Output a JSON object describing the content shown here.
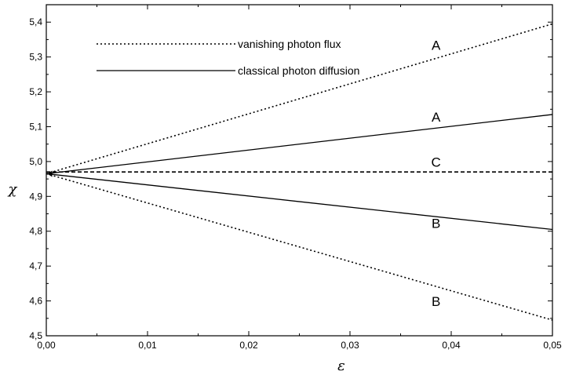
{
  "chart_data": {
    "type": "line",
    "xlabel": "ε",
    "ylabel": "χ",
    "xlim": [
      0.0,
      0.05
    ],
    "ylim": [
      4.5,
      5.45
    ],
    "x_ticks": [
      0.0,
      0.01,
      0.02,
      0.03,
      0.04,
      0.05
    ],
    "x_tick_labels": [
      "0,00",
      "0,01",
      "0,02",
      "0,03",
      "0,04",
      "0,05"
    ],
    "y_ticks": [
      4.5,
      4.6,
      4.7,
      4.8,
      4.9,
      5.0,
      5.1,
      5.2,
      5.3,
      5.4
    ],
    "y_tick_labels": [
      "4,5",
      "4,6",
      "4,7",
      "4,8",
      "4,9",
      "5,0",
      "5,1",
      "5,2",
      "5,3",
      "5,4"
    ],
    "grid": false,
    "legend": {
      "placement": "top-left",
      "entries": [
        {
          "label": "vanishing photon flux",
          "style": "dotted"
        },
        {
          "label": "classical photon diffusion",
          "style": "solid"
        }
      ]
    },
    "series": [
      {
        "label": "A",
        "style": "dotted",
        "x": [
          0.0,
          0.05
        ],
        "y": [
          4.965,
          5.395
        ],
        "label_at": [
          0.0385,
          5.32
        ]
      },
      {
        "label": "A",
        "style": "solid",
        "x": [
          0.0,
          0.05
        ],
        "y": [
          4.965,
          5.135
        ],
        "label_at": [
          0.0385,
          5.115
        ]
      },
      {
        "label": "C",
        "style": "dashed",
        "x": [
          0.0,
          0.05
        ],
        "y": [
          4.97,
          4.97
        ],
        "label_at": [
          0.0385,
          4.985
        ]
      },
      {
        "label": "B",
        "style": "solid",
        "x": [
          0.0,
          0.05
        ],
        "y": [
          4.965,
          4.805
        ],
        "label_at": [
          0.0385,
          4.81
        ]
      },
      {
        "label": "B",
        "style": "dotted",
        "x": [
          0.0,
          0.05
        ],
        "y": [
          4.965,
          4.545
        ],
        "label_at": [
          0.0385,
          4.585
        ]
      }
    ],
    "marker": {
      "x": 0.0005,
      "y": 4.965
    }
  }
}
